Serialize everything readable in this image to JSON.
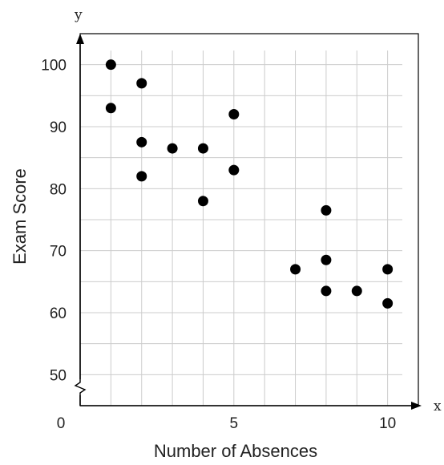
{
  "chart_data": {
    "type": "scatter",
    "title": "",
    "xlabel": "Number of Absences",
    "ylabel": "Exam Score",
    "x_axis_letter": "x",
    "y_axis_letter": "y",
    "origin_label": "0",
    "xlim": [
      0,
      11
    ],
    "ylim": [
      45,
      105
    ],
    "y_axis_break": true,
    "grid": true,
    "x_ticks": [
      {
        "value": 5,
        "label": "5"
      },
      {
        "value": 10,
        "label": "10"
      }
    ],
    "y_ticks": [
      {
        "value": 50,
        "label": "50"
      },
      {
        "value": 60,
        "label": "60"
      },
      {
        "value": 70,
        "label": "70"
      },
      {
        "value": 80,
        "label": "80"
      },
      {
        "value": 90,
        "label": "90"
      },
      {
        "value": 100,
        "label": "100"
      }
    ],
    "points": [
      {
        "x": 1,
        "y": 100
      },
      {
        "x": 1,
        "y": 93
      },
      {
        "x": 2,
        "y": 97
      },
      {
        "x": 2,
        "y": 87.5
      },
      {
        "x": 2,
        "y": 82
      },
      {
        "x": 3,
        "y": 86.5
      },
      {
        "x": 4,
        "y": 86.5
      },
      {
        "x": 4,
        "y": 78
      },
      {
        "x": 5,
        "y": 92
      },
      {
        "x": 5,
        "y": 83
      },
      {
        "x": 7,
        "y": 67
      },
      {
        "x": 8,
        "y": 76.5
      },
      {
        "x": 8,
        "y": 68.5
      },
      {
        "x": 8,
        "y": 63.5
      },
      {
        "x": 9,
        "y": 63.5
      },
      {
        "x": 10,
        "y": 67
      },
      {
        "x": 10,
        "y": 61.5
      }
    ],
    "colors": {
      "point": "#000000",
      "grid": "#cccccc",
      "axis": "#000000"
    }
  }
}
